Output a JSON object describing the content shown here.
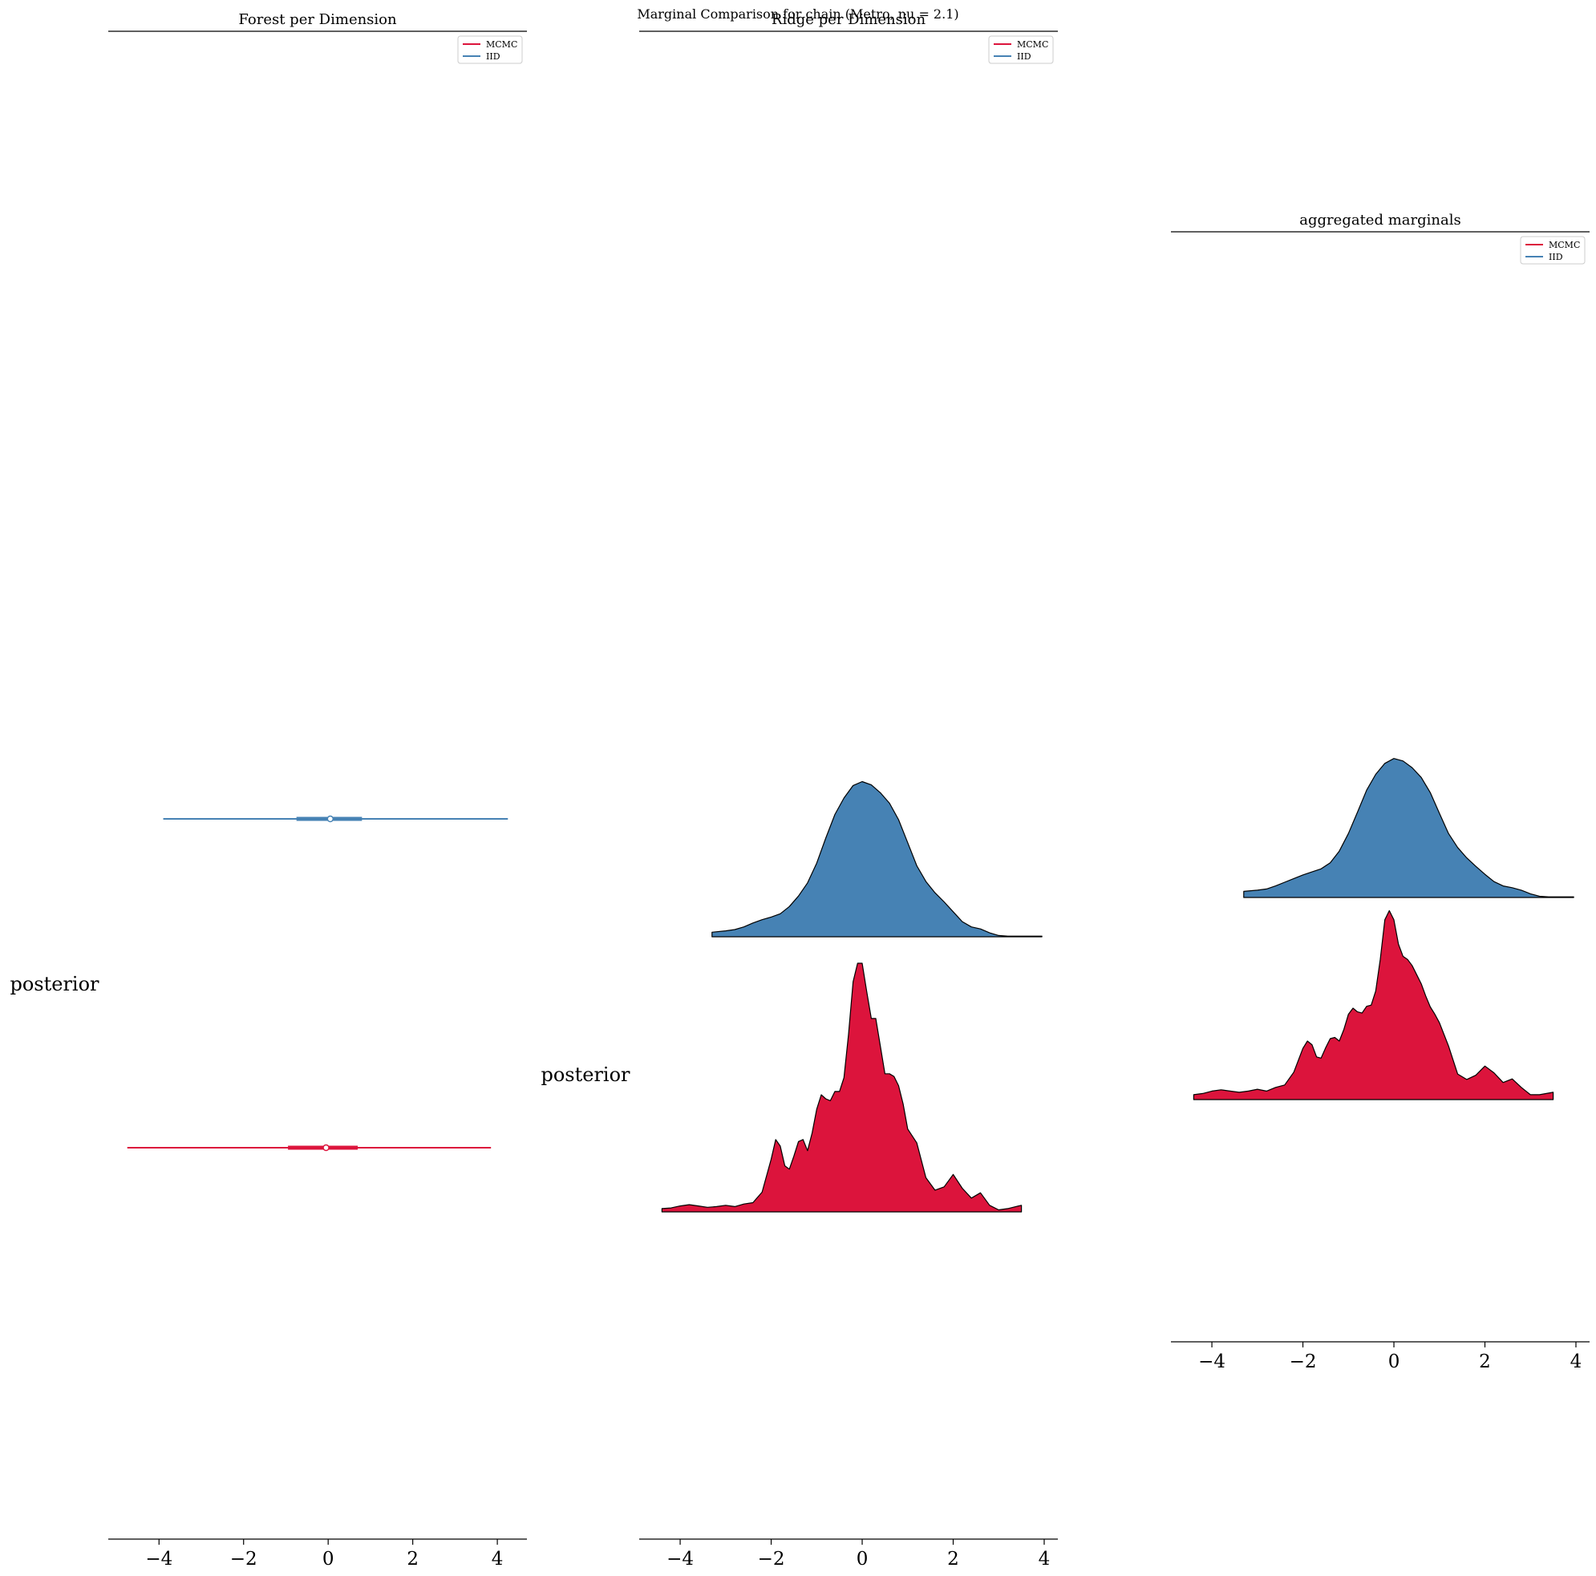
{
  "figure": {
    "suptitle": "Marginal Comparison for chain (Metro, nu = 2.1)",
    "colors": {
      "mcmc": "#dc143c",
      "iid": "#4682b4",
      "outline": "#000000"
    }
  },
  "chart_data": [
    {
      "id": "forest",
      "type": "forest",
      "title": "Forest per Dimension",
      "ylabel": "posterior",
      "xlim": [
        -5.2,
        4.7
      ],
      "xticks": [
        -4,
        -2,
        0,
        2,
        4
      ],
      "xtick_labels": [
        "−4",
        "−2",
        "0",
        "2",
        "4"
      ],
      "legend": {
        "position": "top-right",
        "entries": [
          "MCMC",
          "IID"
        ]
      },
      "series": [
        {
          "name": "IID",
          "color": "#4682b4",
          "row": 1,
          "low": -3.9,
          "high": 4.25,
          "q_low": -0.75,
          "q_high": 0.8,
          "median": 0.05
        },
        {
          "name": "MCMC",
          "color": "#dc143c",
          "row": 0,
          "low": -4.75,
          "high": 3.85,
          "q_low": -0.95,
          "q_high": 0.7,
          "median": -0.05
        }
      ]
    },
    {
      "id": "ridge",
      "type": "area",
      "title": "Ridge per Dimension",
      "ylabel": "posterior",
      "xlim": [
        -4.9,
        4.3
      ],
      "xticks": [
        -4,
        -2,
        0,
        2,
        4
      ],
      "xtick_labels": [
        "−4",
        "−2",
        "0",
        "2",
        "4"
      ],
      "legend": {
        "position": "top-right",
        "entries": [
          "MCMC",
          "IID"
        ]
      },
      "series": [
        {
          "name": "IID",
          "color": "#4682b4",
          "x": [
            -3.3,
            -3.0,
            -2.8,
            -2.6,
            -2.4,
            -2.2,
            -2.0,
            -1.8,
            -1.6,
            -1.4,
            -1.2,
            -1.0,
            -0.8,
            -0.6,
            -0.4,
            -0.2,
            0.0,
            0.2,
            0.4,
            0.6,
            0.8,
            1.0,
            1.2,
            1.4,
            1.6,
            1.8,
            2.0,
            2.2,
            2.4,
            2.6,
            2.8,
            3.0,
            3.2,
            3.4,
            3.6,
            3.8,
            3.95
          ],
          "y": [
            0.07,
            0.09,
            0.11,
            0.15,
            0.21,
            0.26,
            0.3,
            0.35,
            0.46,
            0.62,
            0.82,
            1.12,
            1.5,
            1.86,
            2.11,
            2.3,
            2.36,
            2.31,
            2.19,
            2.03,
            1.78,
            1.43,
            1.08,
            0.84,
            0.67,
            0.53,
            0.38,
            0.23,
            0.15,
            0.12,
            0.06,
            0.02,
            0.01,
            0.01,
            0.01,
            0.01,
            0.01
          ],
          "baseline": 1.0
        },
        {
          "name": "MCMC",
          "color": "#dc143c",
          "x": [
            -4.4,
            -4.2,
            -4.0,
            -3.8,
            -3.6,
            -3.4,
            -3.2,
            -3.0,
            -2.8,
            -2.6,
            -2.4,
            -2.2,
            -2.0,
            -1.9,
            -1.8,
            -1.7,
            -1.6,
            -1.5,
            -1.4,
            -1.3,
            -1.2,
            -1.1,
            -1.0,
            -0.9,
            -0.8,
            -0.7,
            -0.6,
            -0.5,
            -0.4,
            -0.3,
            -0.2,
            -0.1,
            0.0,
            0.1,
            0.2,
            0.3,
            0.4,
            0.5,
            0.6,
            0.7,
            0.8,
            0.9,
            1.0,
            1.2,
            1.4,
            1.6,
            1.8,
            2.0,
            2.2,
            2.4,
            2.6,
            2.8,
            3.0,
            3.2,
            3.5
          ],
          "y": [
            0.05,
            0.06,
            0.09,
            0.11,
            0.09,
            0.07,
            0.08,
            0.1,
            0.08,
            0.12,
            0.14,
            0.3,
            0.8,
            1.1,
            1.0,
            0.7,
            0.65,
            0.85,
            1.07,
            1.1,
            0.93,
            1.2,
            1.56,
            1.78,
            1.72,
            1.69,
            1.83,
            1.83,
            2.04,
            2.7,
            3.5,
            3.78,
            3.78,
            3.35,
            2.94,
            2.94,
            2.52,
            2.1,
            2.1,
            2.06,
            1.92,
            1.64,
            1.26,
            1.05,
            0.52,
            0.33,
            0.38,
            0.57,
            0.36,
            0.21,
            0.29,
            0.1,
            0.03,
            0.05,
            0.1
          ],
          "baseline": 0.0
        }
      ]
    },
    {
      "id": "aggregated",
      "type": "area",
      "title": "aggregated marginals",
      "xlim": [
        -4.9,
        4.3
      ],
      "xticks": [
        -4,
        -2,
        0,
        2,
        4
      ],
      "xtick_labels": [
        "−4",
        "−2",
        "0",
        "2",
        "4"
      ],
      "legend": {
        "position": "top-right",
        "entries": [
          "MCMC",
          "IID"
        ]
      },
      "series": [
        {
          "name": "IID",
          "color": "#4682b4",
          "x": [
            -3.3,
            -3.0,
            -2.8,
            -2.6,
            -2.4,
            -2.2,
            -2.0,
            -1.8,
            -1.6,
            -1.4,
            -1.2,
            -1.0,
            -0.8,
            -0.6,
            -0.4,
            -0.2,
            0.0,
            0.2,
            0.4,
            0.6,
            0.8,
            1.0,
            1.2,
            1.4,
            1.6,
            1.8,
            2.0,
            2.2,
            2.4,
            2.6,
            2.8,
            3.0,
            3.2,
            3.4,
            3.6,
            3.8,
            3.95
          ],
          "y": [
            0.1,
            0.12,
            0.14,
            0.19,
            0.25,
            0.31,
            0.37,
            0.42,
            0.47,
            0.57,
            0.76,
            1.05,
            1.4,
            1.76,
            2.02,
            2.2,
            2.28,
            2.24,
            2.13,
            1.97,
            1.72,
            1.38,
            1.05,
            0.82,
            0.65,
            0.51,
            0.38,
            0.26,
            0.19,
            0.16,
            0.12,
            0.06,
            0.02,
            0.01,
            0.01,
            0.01,
            0.01
          ],
          "baseline": 1.0
        },
        {
          "name": "MCMC",
          "color": "#dc143c",
          "x": [
            -4.4,
            -4.2,
            -4.0,
            -3.8,
            -3.6,
            -3.4,
            -3.2,
            -3.0,
            -2.8,
            -2.6,
            -2.4,
            -2.2,
            -2.0,
            -1.9,
            -1.8,
            -1.7,
            -1.6,
            -1.5,
            -1.4,
            -1.3,
            -1.2,
            -1.1,
            -1.0,
            -0.9,
            -0.8,
            -0.7,
            -0.6,
            -0.5,
            -0.4,
            -0.3,
            -0.2,
            -0.1,
            0.0,
            0.1,
            0.2,
            0.3,
            0.4,
            0.5,
            0.6,
            0.7,
            0.8,
            0.9,
            1.0,
            1.2,
            1.4,
            1.6,
            1.8,
            2.0,
            2.2,
            2.4,
            2.6,
            2.8,
            3.0,
            3.2,
            3.5
          ],
          "y": [
            0.08,
            0.1,
            0.14,
            0.16,
            0.14,
            0.12,
            0.14,
            0.17,
            0.14,
            0.2,
            0.24,
            0.45,
            0.84,
            0.96,
            0.9,
            0.7,
            0.68,
            0.85,
            1.0,
            1.02,
            0.96,
            1.15,
            1.4,
            1.5,
            1.44,
            1.42,
            1.53,
            1.55,
            1.78,
            2.3,
            2.95,
            3.1,
            2.95,
            2.55,
            2.35,
            2.3,
            2.2,
            2.05,
            1.9,
            1.7,
            1.52,
            1.4,
            1.26,
            0.88,
            0.42,
            0.33,
            0.4,
            0.55,
            0.44,
            0.28,
            0.34,
            0.2,
            0.08,
            0.08,
            0.12
          ],
          "baseline": 0.0
        }
      ]
    }
  ]
}
